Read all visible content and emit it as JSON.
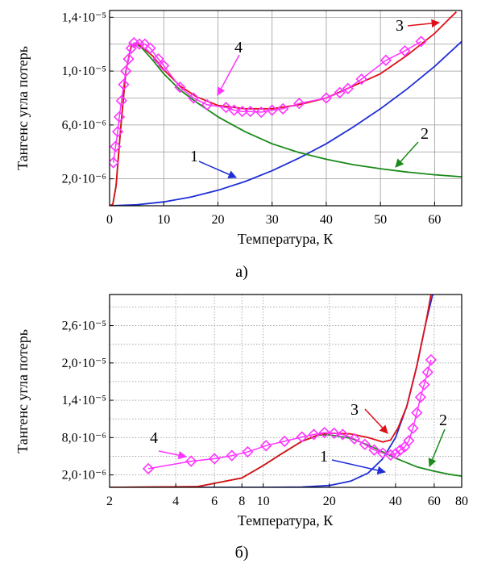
{
  "chart_data": [
    {
      "type": "line",
      "caption": "а)",
      "xlabel": "Температура, К",
      "ylabel": "Тангенс угла потерь",
      "xlim": [
        0,
        65
      ],
      "ylim": [
        0,
        1.45e-05
      ],
      "x_scale": "linear",
      "x_ticks": [
        "0",
        "10",
        "20",
        "30",
        "40",
        "50",
        "60"
      ],
      "y_ticks": [
        "2,0·10⁻⁶",
        "6,0·10⁻⁶",
        "1,0·10⁻⁵",
        "1,4·10⁻⁵"
      ],
      "grid": true,
      "curve_labels": [
        "1",
        "2",
        "3",
        "4"
      ],
      "series": [
        {
          "color": "#1f2fd6",
          "x": [
            0,
            5,
            10,
            15,
            20,
            25,
            30,
            35,
            40,
            45,
            50,
            55,
            60,
            65
          ],
          "y": [
            0,
            7e-08,
            2.9e-07,
            6.5e-07,
            1.15e-06,
            1.8e-06,
            2.6e-06,
            3.55e-06,
            4.6e-06,
            5.85e-06,
            7.2e-06,
            8.7e-06,
            1.035e-05,
            1.22e-05
          ]
        },
        {
          "color": "#1a8a1a",
          "x": [
            0,
            0.6,
            1.2,
            2,
            3,
            4,
            5,
            6,
            8,
            10,
            13,
            16,
            20,
            25,
            30,
            35,
            40,
            45,
            50,
            55,
            60,
            65
          ],
          "y": [
            0,
            1e-07,
            1.5e-06,
            5.5e-06,
            1e-05,
            1.18e-05,
            1.2e-05,
            1.17e-05,
            1.08e-05,
            9.8e-06,
            8.6e-06,
            7.7e-06,
            6.6e-06,
            5.5e-06,
            4.6e-06,
            3.95e-06,
            3.45e-06,
            3.05e-06,
            2.75e-06,
            2.5e-06,
            2.3e-06,
            2.15e-06
          ]
        },
        {
          "color": "#e0101a",
          "x": [
            0,
            0.6,
            1.2,
            2,
            3,
            4,
            5,
            6,
            8,
            10,
            13,
            16,
            20,
            25,
            30,
            35,
            40,
            45,
            50,
            55,
            60,
            64
          ],
          "y": [
            0,
            1e-07,
            1.5e-06,
            5.5e-06,
            1e-05,
            1.19e-05,
            1.21e-05,
            1.18e-05,
            1.11e-05,
            1.01e-05,
            8.9e-06,
            8.1e-06,
            7.45e-06,
            7.2e-06,
            7.2e-06,
            7.5e-06,
            8e-06,
            8.9e-06,
            9.8e-06,
            1.12e-05,
            1.28e-05,
            1.44e-05
          ]
        },
        {
          "color": "#ff33ff",
          "marker": "diamond",
          "x": [
            0.7,
            1.1,
            1.5,
            1.8,
            2.2,
            2.6,
            3.0,
            3.5,
            4.0,
            4.5,
            5.5,
            6.5,
            7.5,
            9,
            10,
            13,
            15.5,
            18,
            21.5,
            23,
            24.5,
            26,
            28,
            30,
            32,
            35,
            40,
            42.5,
            44,
            46.5,
            51,
            54.5,
            57.5
          ],
          "y": [
            3.2e-06,
            4.4e-06,
            5.5e-06,
            6.6e-06,
            7.8e-06,
            9e-06,
            1e-05,
            1.09e-05,
            1.17e-05,
            1.21e-05,
            1.2e-05,
            1.2e-05,
            1.17e-05,
            1.09e-05,
            1.04e-05,
            8.8e-06,
            8e-06,
            7.5e-06,
            7.3e-06,
            7.1e-06,
            7e-06,
            7e-06,
            6.95e-06,
            7.1e-06,
            7.2e-06,
            7.6e-06,
            8e-06,
            8.4e-06,
            8.7e-06,
            9.4e-06,
            1.08e-05,
            1.15e-05,
            1.22e-05
          ]
        }
      ]
    },
    {
      "type": "line",
      "caption": "б)",
      "xlabel": "Температура, К",
      "ylabel": "Тангенс угла потерь",
      "xlim": [
        2,
        80
      ],
      "ylim": [
        0,
        3.1e-05
      ],
      "x_scale": "log",
      "x_ticks": [
        "2",
        "4",
        "6",
        "8",
        "10",
        "20",
        "40",
        "60",
        "80"
      ],
      "y_ticks": [
        "2,0·10⁻⁶",
        "8,0·10⁻⁶",
        "1,4·10⁻⁵",
        "2,0·10⁻⁵",
        "2,6·10⁻⁵"
      ],
      "grid": true,
      "curve_labels": [
        "1",
        "2",
        "3",
        "4"
      ],
      "series": [
        {
          "color": "#1f2fd6",
          "x": [
            2,
            10,
            15,
            20,
            25,
            30,
            35,
            40,
            45,
            50,
            55,
            60
          ],
          "y": [
            0,
            0,
            5e-08,
            3e-07,
            1e-06,
            2.3e-06,
            4.6e-06,
            8e-06,
            1.3e-05,
            1.95e-05,
            2.65e-05,
            3.2e-05
          ]
        },
        {
          "color": "#1a8a1a",
          "x": [
            2,
            5,
            8,
            10,
            12,
            15,
            18,
            20,
            25,
            30,
            35,
            40,
            50,
            60,
            70,
            80
          ],
          "y": [
            0,
            1e-07,
            1.5e-06,
            3.5e-06,
            5.3e-06,
            7.4e-06,
            8.4e-06,
            8.45e-06,
            7.9e-06,
            6.8e-06,
            5.7e-06,
            4.7e-06,
            3.3e-06,
            2.6e-06,
            2.1e-06,
            1.8e-06
          ]
        },
        {
          "color": "#e0101a",
          "x": [
            2,
            5,
            8,
            10,
            12,
            15,
            18,
            20,
            25,
            30,
            35,
            38,
            41,
            45,
            50,
            55,
            58
          ],
          "y": [
            0,
            1e-07,
            1.5e-06,
            3.5e-06,
            5.3e-06,
            7.4e-06,
            8.5e-06,
            8.7e-06,
            8.6e-06,
            8e-06,
            7.3e-06,
            7.6e-06,
            9.5e-06,
            1.3e-05,
            1.95e-05,
            2.65e-05,
            3.1e-05
          ]
        },
        {
          "color": "#ff33ff",
          "marker": "diamond",
          "x": [
            3,
            4.7,
            6,
            7.2,
            8.5,
            10.3,
            12.5,
            15,
            17,
            19,
            21,
            23,
            26,
            29,
            32,
            35,
            38,
            40,
            42,
            44,
            46,
            48,
            50,
            52,
            54,
            56,
            58
          ],
          "y": [
            3e-06,
            4.2e-06,
            4.6e-06,
            5.1e-06,
            5.7e-06,
            6.7e-06,
            7.4e-06,
            8.1e-06,
            8.5e-06,
            8.8e-06,
            8.7e-06,
            8.5e-06,
            7.8e-06,
            6.9e-06,
            6e-06,
            5.5e-06,
            5.2e-06,
            5.4e-06,
            6e-06,
            6.5e-06,
            7.5e-06,
            9.5e-06,
            1.2e-05,
            1.45e-05,
            1.65e-05,
            1.85e-05,
            2.05e-05
          ]
        }
      ]
    }
  ]
}
